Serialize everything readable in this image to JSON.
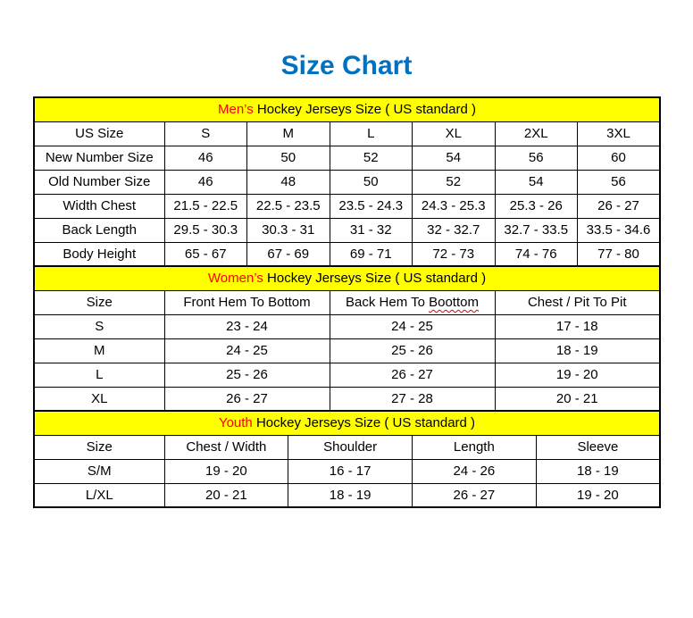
{
  "page": {
    "title": "Size Chart",
    "title_color": "#0070C0",
    "accent_color": "#FF0000",
    "band_color": "#FFFF00"
  },
  "men": {
    "band": {
      "accent": "Men’s",
      "rest": " Hockey Jerseys Size ( US standard )"
    },
    "columns": [
      "US Size",
      "S",
      "M",
      "L",
      "XL",
      "2XL",
      "3XL"
    ],
    "rows": [
      {
        "label": "New Number Size",
        "values": [
          "46",
          "50",
          "52",
          "54",
          "56",
          "60"
        ]
      },
      {
        "label": "Old Number Size",
        "values": [
          "46",
          "48",
          "50",
          "52",
          "54",
          "56"
        ]
      },
      {
        "label": "Width Chest",
        "values": [
          "21.5 - 22.5",
          "22.5 - 23.5",
          "23.5 - 24.3",
          "24.3 - 25.3",
          "25.3 - 26",
          "26 - 27"
        ]
      },
      {
        "label": "Back Length",
        "values": [
          "29.5 - 30.3",
          "30.3 - 31",
          "31 - 32",
          "32 - 32.7",
          "32.7 - 33.5",
          "33.5 - 34.6"
        ]
      },
      {
        "label": "Body Height",
        "values": [
          "65 - 67",
          "67 - 69",
          "69 - 71",
          "72 - 73",
          "74 - 76",
          "77 - 80"
        ]
      }
    ]
  },
  "women": {
    "band": {
      "accent": "Women’s",
      "rest": " Hockey Jerseys Size ( US standard )"
    },
    "columns": [
      {
        "text": "Size"
      },
      {
        "text": "Front Hem To Bottom"
      },
      {
        "text": "Back Hem To ",
        "misspelled": "Boottom"
      },
      {
        "text": "Chest / Pit To Pit"
      }
    ],
    "rows": [
      {
        "label": "S",
        "values": [
          "23 - 24",
          "24 - 25",
          "17 - 18"
        ]
      },
      {
        "label": "M",
        "values": [
          "24 - 25",
          "25 - 26",
          "18 - 19"
        ]
      },
      {
        "label": "L",
        "values": [
          "25 - 26",
          "26 - 27",
          "19 - 20"
        ]
      },
      {
        "label": "XL",
        "values": [
          "26 - 27",
          "27 - 28",
          "20 - 21"
        ]
      }
    ]
  },
  "youth": {
    "band": {
      "accent": "Youth",
      "rest": " Hockey Jerseys Size ( US standard )"
    },
    "columns": [
      "Size",
      "Chest / Width",
      "Shoulder",
      "Length",
      "Sleeve"
    ],
    "rows": [
      {
        "label": "S/M",
        "values": [
          "19 - 20",
          "16 - 17",
          "24 - 26",
          "18 - 19"
        ]
      },
      {
        "label": "L/XL",
        "values": [
          "20 - 21",
          "18 - 19",
          "26 - 27",
          "19 - 20"
        ]
      }
    ]
  }
}
